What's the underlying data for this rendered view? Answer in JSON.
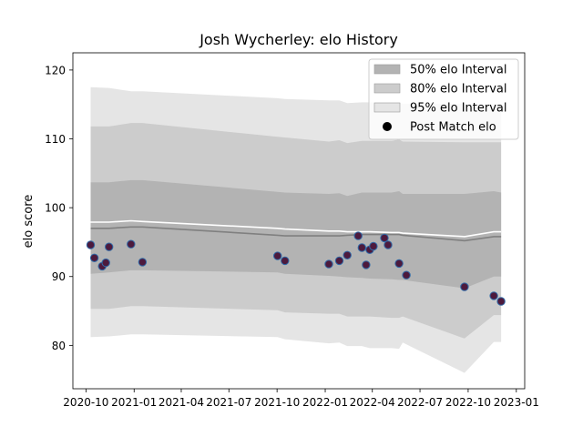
{
  "chart_data": {
    "type": "area",
    "title": "Josh Wycherley: elo History",
    "xlabel": "",
    "ylabel": "elo score",
    "xlim": [
      "2020-09-06",
      "2023-01-17"
    ],
    "ylim": [
      73.7,
      122.5
    ],
    "x_ticks": [
      "2020-10",
      "2021-01",
      "2021-04",
      "2021-07",
      "2021-10",
      "2022-01",
      "2022-04",
      "2022-07",
      "2022-10",
      "2023-01"
    ],
    "y_ticks": [
      80,
      90,
      100,
      110,
      120
    ],
    "grid": false,
    "legend_position": "top-right",
    "colors": {
      "band_50": "#b3b3b3",
      "band_80": "#cccccc",
      "band_95": "#e5e5e5",
      "median_line": "#808080",
      "mean_line": "#ffffff",
      "marker_fill": "#4d1a3d",
      "marker_edge": "#2f6aa8"
    },
    "legend": [
      {
        "label": "50% elo Interval",
        "kind": "band50"
      },
      {
        "label": "80% elo Interval",
        "kind": "band80"
      },
      {
        "label": "95% elo Interval",
        "kind": "band95"
      },
      {
        "label": "Post Match elo",
        "kind": "point"
      }
    ],
    "bands": {
      "x": [
        "2020-10-10",
        "2020-11-14",
        "2020-12-26",
        "2021-01-17",
        "2021-10-02",
        "2021-10-16",
        "2022-01-08",
        "2022-01-28",
        "2022-02-12",
        "2022-03-12",
        "2022-03-27",
        "2022-05-08",
        "2022-05-22",
        "2022-05-29",
        "2022-09-24",
        "2022-11-19",
        "2022-12-03"
      ],
      "p95_low": [
        81.2,
        81.3,
        81.6,
        81.6,
        81.2,
        80.9,
        80.3,
        80.4,
        79.9,
        79.9,
        79.6,
        79.6,
        79.5,
        80.4,
        76.0,
        80.5,
        80.5
      ],
      "p80_low": [
        85.3,
        85.3,
        85.7,
        85.7,
        85.1,
        84.8,
        84.6,
        84.6,
        84.2,
        84.2,
        84.2,
        84.0,
        84.0,
        84.2,
        81.0,
        84.4,
        84.4
      ],
      "p50_low": [
        90.4,
        90.6,
        90.9,
        90.9,
        90.6,
        90.4,
        90.1,
        90.0,
        89.9,
        89.8,
        89.7,
        89.6,
        89.5,
        89.5,
        88.3,
        90.0,
        90.0
      ],
      "median": [
        97.0,
        97.0,
        97.2,
        97.2,
        96.0,
        95.9,
        95.9,
        95.9,
        96.0,
        96.1,
        96.1,
        96.1,
        96.1,
        96.0,
        95.2,
        95.8,
        95.8
      ],
      "mean": [
        97.9,
        97.9,
        98.1,
        98.0,
        97.0,
        96.9,
        96.6,
        96.6,
        96.5,
        96.5,
        96.5,
        96.4,
        96.4,
        96.3,
        95.8,
        96.5,
        96.5
      ],
      "p50_high": [
        103.7,
        103.7,
        104.0,
        104.0,
        102.3,
        102.2,
        102.0,
        102.1,
        101.7,
        102.2,
        102.2,
        102.2,
        102.4,
        102.0,
        102.0,
        102.4,
        102.2
      ],
      "p80_high": [
        111.8,
        111.8,
        112.3,
        112.3,
        110.3,
        110.2,
        109.6,
        109.8,
        109.4,
        109.7,
        109.7,
        109.7,
        109.9,
        109.6,
        109.5,
        109.5,
        109.5
      ],
      "p95_high": [
        117.5,
        117.4,
        116.9,
        116.9,
        115.9,
        115.8,
        115.6,
        115.6,
        115.2,
        115.3,
        115.3,
        115.2,
        115.3,
        115.1,
        115.1,
        115.1,
        115.1
      ]
    },
    "points": {
      "x": [
        "2020-10-10",
        "2020-10-17",
        "2020-11-01",
        "2020-11-08",
        "2020-11-14",
        "2020-12-26",
        "2021-01-17",
        "2021-10-02",
        "2021-10-16",
        "2022-01-08",
        "2022-01-28",
        "2022-02-12",
        "2022-03-05",
        "2022-03-12",
        "2022-03-20",
        "2022-03-27",
        "2022-04-03",
        "2022-04-24",
        "2022-05-01",
        "2022-05-22",
        "2022-06-05",
        "2022-09-24",
        "2022-11-19",
        "2022-12-03"
      ],
      "y": [
        94.6,
        92.7,
        91.5,
        92.0,
        94.3,
        94.7,
        92.1,
        93.0,
        92.3,
        91.8,
        92.3,
        93.1,
        95.9,
        94.2,
        91.7,
        93.9,
        94.4,
        95.6,
        94.6,
        91.9,
        90.2,
        88.5,
        87.2,
        86.4
      ]
    }
  }
}
